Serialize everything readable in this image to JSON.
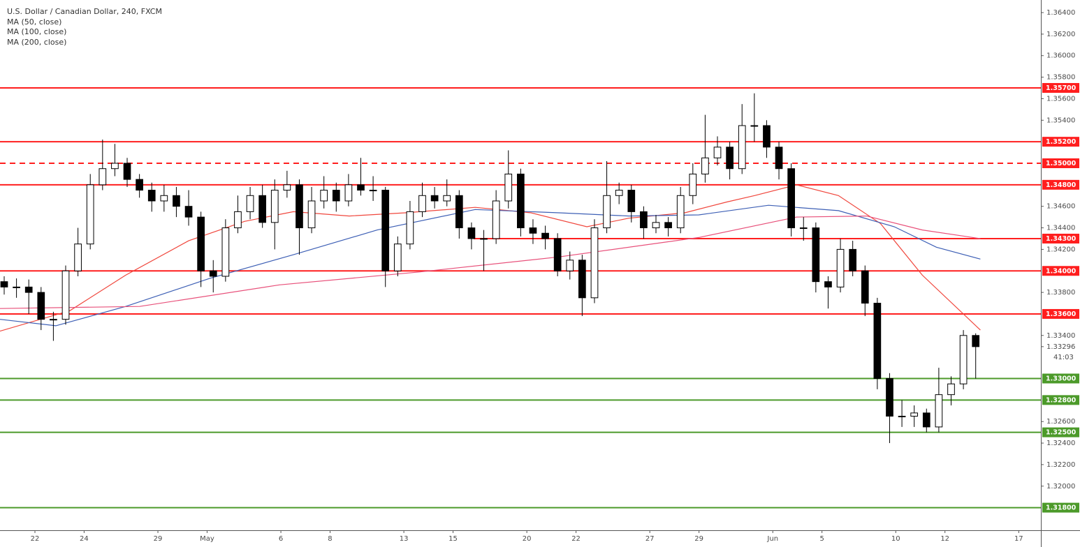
{
  "chart_data": {
    "type": "candlestick",
    "title": "U.S. Dollar / Canadian Dollar, 240, FXCM",
    "up_color": "#ffffff",
    "down_color": "#000000",
    "x": [
      -1.25,
      -0.75,
      -0.25,
      0.25,
      0.75,
      1.25,
      1.75,
      2.25,
      2.75,
      3.25,
      3.75,
      4.25,
      4.75,
      5.25,
      5.75,
      6.25,
      6.75,
      7.25,
      7.75,
      8.25,
      8.75,
      9.25,
      9.75,
      10.25,
      10.75,
      11.25,
      11.75,
      12.25,
      12.75,
      13.25,
      13.75,
      14.25,
      14.75,
      15.25,
      15.75,
      16.25,
      16.75,
      17.25,
      17.75,
      18.25,
      18.75,
      19.25,
      19.75,
      20.25,
      20.75,
      21.25,
      21.75,
      22.25,
      22.75,
      23.25,
      23.75,
      24.25,
      24.75,
      25.25,
      25.75,
      26.25,
      26.75,
      27.25,
      27.75,
      28.25,
      28.75,
      29.25,
      29.75,
      30.25,
      30.75,
      31.25,
      31.75,
      32.25,
      32.75,
      33.25,
      33.75,
      34.25,
      34.75,
      35.25,
      35.75,
      36.25,
      36.75,
      37.25,
      37.75,
      38.25
    ],
    "open": [
      1.339,
      1.3385,
      1.3385,
      1.338,
      1.3355,
      1.3355,
      1.34,
      1.3425,
      1.348,
      1.3495,
      1.35,
      1.3485,
      1.3475,
      1.3465,
      1.347,
      1.346,
      1.345,
      1.34,
      1.3395,
      1.344,
      1.3455,
      1.347,
      1.3445,
      1.3475,
      1.348,
      1.344,
      1.3465,
      1.3475,
      1.3465,
      1.348,
      1.3475,
      1.3475,
      1.34,
      1.3425,
      1.3455,
      1.347,
      1.3465,
      1.347,
      1.344,
      1.343,
      1.343,
      1.3465,
      1.349,
      1.344,
      1.3435,
      1.343,
      1.34,
      1.341,
      1.3375,
      1.344,
      1.347,
      1.3475,
      1.3455,
      1.344,
      1.3445,
      1.344,
      1.347,
      1.349,
      1.3505,
      1.3515,
      1.3495,
      1.3535,
      1.3535,
      1.3515,
      1.3495,
      1.344,
      1.344,
      1.339,
      1.3385,
      1.342,
      1.34,
      1.337,
      1.33,
      1.3265,
      1.3265,
      1.3268,
      1.3255,
      1.3285,
      1.3295,
      1.334
    ],
    "high": [
      1.3395,
      1.3393,
      1.3392,
      1.3385,
      1.3362,
      1.3405,
      1.344,
      1.349,
      1.3522,
      1.3518,
      1.3505,
      1.349,
      1.3482,
      1.348,
      1.3478,
      1.3475,
      1.3455,
      1.341,
      1.3448,
      1.347,
      1.3478,
      1.348,
      1.3485,
      1.3493,
      1.3485,
      1.3478,
      1.3488,
      1.3482,
      1.349,
      1.3505,
      1.3488,
      1.3478,
      1.3432,
      1.3465,
      1.3482,
      1.3478,
      1.3485,
      1.3475,
      1.3445,
      1.3438,
      1.3475,
      1.3512,
      1.3495,
      1.3448,
      1.3442,
      1.3435,
      1.3418,
      1.3415,
      1.3448,
      1.3502,
      1.3482,
      1.348,
      1.346,
      1.3452,
      1.345,
      1.3478,
      1.35,
      1.3545,
      1.3525,
      1.352,
      1.3555,
      1.3565,
      1.354,
      1.352,
      1.35,
      1.345,
      1.3445,
      1.3395,
      1.343,
      1.3428,
      1.3405,
      1.3375,
      1.3305,
      1.328,
      1.3275,
      1.3272,
      1.331,
      1.3302,
      1.3345,
      1.3342
    ],
    "low": [
      1.3378,
      1.3375,
      1.336,
      1.3345,
      1.3335,
      1.335,
      1.3395,
      1.342,
      1.3475,
      1.3488,
      1.3478,
      1.3468,
      1.3455,
      1.3455,
      1.345,
      1.3442,
      1.3385,
      1.338,
      1.339,
      1.3435,
      1.3448,
      1.344,
      1.342,
      1.3468,
      1.3415,
      1.3435,
      1.3458,
      1.3455,
      1.346,
      1.347,
      1.3465,
      1.3385,
      1.3395,
      1.342,
      1.345,
      1.3458,
      1.346,
      1.343,
      1.342,
      1.34,
      1.3425,
      1.3458,
      1.3432,
      1.3425,
      1.342,
      1.3395,
      1.3392,
      1.3358,
      1.337,
      1.3435,
      1.3462,
      1.3445,
      1.343,
      1.3435,
      1.3432,
      1.3435,
      1.3462,
      1.3482,
      1.3498,
      1.3485,
      1.349,
      1.352,
      1.3505,
      1.3485,
      1.3432,
      1.3428,
      1.338,
      1.3365,
      1.338,
      1.3395,
      1.3358,
      1.329,
      1.324,
      1.3255,
      1.3255,
      1.325,
      1.325,
      1.3275,
      1.329,
      1.33
    ],
    "close": [
      1.3385,
      1.3385,
      1.338,
      1.3355,
      1.3355,
      1.34,
      1.3425,
      1.348,
      1.3495,
      1.35,
      1.3485,
      1.3475,
      1.3465,
      1.347,
      1.346,
      1.345,
      1.34,
      1.3395,
      1.344,
      1.3455,
      1.347,
      1.3445,
      1.3475,
      1.348,
      1.344,
      1.3465,
      1.3475,
      1.3465,
      1.348,
      1.3475,
      1.3475,
      1.34,
      1.3425,
      1.3455,
      1.347,
      1.3465,
      1.347,
      1.344,
      1.343,
      1.343,
      1.3465,
      1.349,
      1.344,
      1.3435,
      1.343,
      1.34,
      1.341,
      1.3375,
      1.344,
      1.347,
      1.3475,
      1.3455,
      1.344,
      1.3445,
      1.344,
      1.347,
      1.349,
      1.3505,
      1.3515,
      1.3495,
      1.3535,
      1.3535,
      1.3515,
      1.3495,
      1.344,
      1.344,
      1.339,
      1.3385,
      1.342,
      1.34,
      1.337,
      1.33,
      1.3265,
      1.3265,
      1.3268,
      1.3255,
      1.3285,
      1.3295,
      1.334,
      1.33296
    ],
    "overlays": [
      {
        "name": "MA (50, close)",
        "color": "#f0463c",
        "x": [
          -1.42,
          1.42,
          3.69,
          6.25,
          8.52,
          10.51,
          12.78,
          15.06,
          17.9,
          20.17,
          22.44,
          24.15,
          26.42,
          28.13,
          29.26,
          30.97,
          32.67,
          34.38,
          36.08,
          38.44
        ],
        "values": [
          1.3344,
          1.3363,
          1.3396,
          1.3428,
          1.3446,
          1.3455,
          1.3451,
          1.3454,
          1.3459,
          1.3454,
          1.3441,
          1.3449,
          1.3454,
          1.3464,
          1.347,
          1.348,
          1.347,
          1.3444,
          1.3396,
          1.3345
        ]
      },
      {
        "name": "MA (100, close)",
        "color": "#3d5fb5",
        "x": [
          -1.42,
          0.85,
          3.69,
          7.1,
          10.51,
          13.92,
          17.9,
          21.31,
          24.15,
          26.99,
          29.83,
          32.67,
          34.94,
          36.65,
          38.44
        ],
        "values": [
          1.3355,
          1.3349,
          1.3367,
          1.3393,
          1.3415,
          1.3438,
          1.3457,
          1.3454,
          1.3451,
          1.3452,
          1.3461,
          1.3456,
          1.3441,
          1.3422,
          1.3411
        ]
      },
      {
        "name": "MA (200, close)",
        "color": "#e8507a",
        "x": [
          -1.42,
          4.26,
          9.94,
          15.63,
          21.31,
          26.99,
          30.97,
          33.81,
          36.08,
          38.44
        ],
        "values": [
          1.3365,
          1.3367,
          1.3387,
          1.3399,
          1.3413,
          1.3431,
          1.345,
          1.3451,
          1.3438,
          1.343
        ]
      }
    ],
    "levels": [
      {
        "value": 1.357,
        "label": "1.35700",
        "color": "#ff1e1e"
      },
      {
        "value": 1.352,
        "label": "1.35200",
        "color": "#ff1e1e"
      },
      {
        "value": 1.35,
        "label": "1.35000",
        "color": "#ff1e1e",
        "dashed": true
      },
      {
        "value": 1.348,
        "label": "1.34800",
        "color": "#ff1e1e"
      },
      {
        "value": 1.343,
        "label": "1.34300",
        "color": "#ff1e1e",
        "x_start": 17.84
      },
      {
        "value": 1.34,
        "label": "1.34000",
        "color": "#ff1e1e"
      },
      {
        "value": 1.336,
        "label": "1.33600",
        "color": "#ff1e1e"
      },
      {
        "value": 1.33,
        "label": "1.33000",
        "color": "#4c9a2a"
      },
      {
        "value": 1.328,
        "label": "1.32800",
        "color": "#4c9a2a"
      },
      {
        "value": 1.325,
        "label": "1.32500",
        "color": "#4c9a2a"
      },
      {
        "value": 1.318,
        "label": "1.31800",
        "color": "#4c9a2a"
      }
    ],
    "last_price": {
      "value": 1.33296,
      "label": "1.33296",
      "countdown": "41:03"
    },
    "xlim": [
      -1.42,
      40.9
    ],
    "ylim": [
      1.3159,
      1.36517
    ],
    "xticks": [
      {
        "value": 0,
        "label": "22"
      },
      {
        "value": 2,
        "label": "24"
      },
      {
        "value": 5,
        "label": "29"
      },
      {
        "value": 7,
        "label": "May"
      },
      {
        "value": 10,
        "label": "6"
      },
      {
        "value": 12,
        "label": "8"
      },
      {
        "value": 15,
        "label": "13"
      },
      {
        "value": 17,
        "label": "15"
      },
      {
        "value": 20,
        "label": "20"
      },
      {
        "value": 22,
        "label": "22"
      },
      {
        "value": 25,
        "label": "27"
      },
      {
        "value": 27,
        "label": "29"
      },
      {
        "value": 30,
        "label": "Jun"
      },
      {
        "value": 32,
        "label": "5"
      },
      {
        "value": 35,
        "label": "10"
      },
      {
        "value": 37,
        "label": "12"
      },
      {
        "value": 40,
        "label": "17"
      }
    ],
    "yticks": [
      {
        "value": 1.364,
        "label": "1.36400"
      },
      {
        "value": 1.362,
        "label": "1.36200"
      },
      {
        "value": 1.36,
        "label": "1.36000"
      },
      {
        "value": 1.358,
        "label": "1.35800"
      },
      {
        "value": 1.356,
        "label": "1.35600"
      },
      {
        "value": 1.354,
        "label": "1.35400"
      },
      {
        "value": 1.346,
        "label": "1.34600"
      },
      {
        "value": 1.344,
        "label": "1.34400"
      },
      {
        "value": 1.342,
        "label": "1.34200"
      },
      {
        "value": 1.338,
        "label": "1.33800"
      },
      {
        "value": 1.334,
        "label": "1.33400"
      },
      {
        "value": 1.326,
        "label": "1.32600"
      },
      {
        "value": 1.324,
        "label": "1.32400"
      },
      {
        "value": 1.322,
        "label": "1.32200"
      },
      {
        "value": 1.32,
        "label": "1.32000"
      }
    ]
  }
}
